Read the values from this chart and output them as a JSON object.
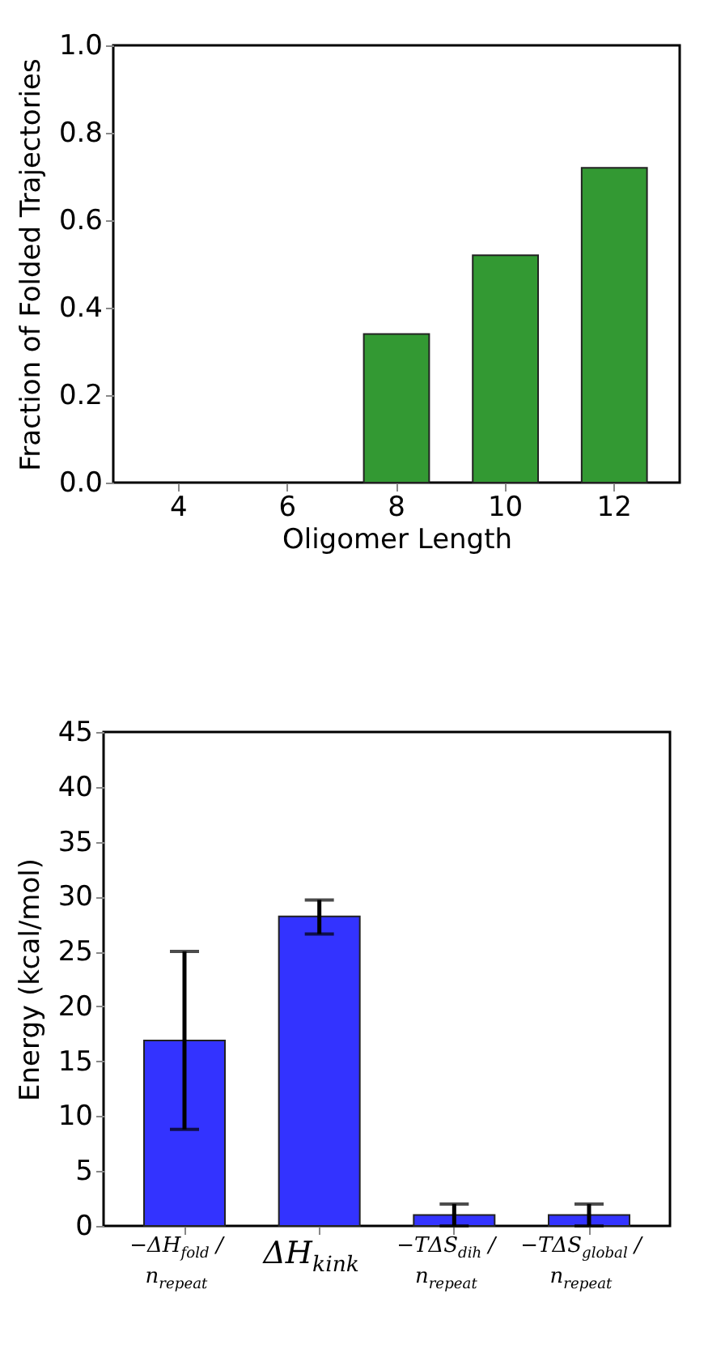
{
  "chart_data": [
    {
      "type": "bar",
      "xlabel": "Oligomer Length",
      "ylabel": "Fraction of Folded Trajectories",
      "categories": [
        "4",
        "6",
        "8",
        "10",
        "12"
      ],
      "values": [
        0,
        0,
        0.34,
        0.52,
        0.72
      ],
      "color": "#339933",
      "ylim": [
        0,
        1
      ],
      "yticks": [
        {
          "value": 0,
          "label": "0.0"
        },
        0.2,
        0.4,
        0.6,
        0.8,
        {
          "value": 1,
          "label": "1.0"
        }
      ],
      "grid": false
    },
    {
      "type": "bar",
      "ylabel": "Energy (kcal/mol)",
      "categories": [
        "−ΔH$_{fold}$ / n$_{repeat}$",
        "ΔH$_{kink}$",
        "−TΔS$_{dih}$ / n$_{repeat}$",
        "−TΔS$_{global}$ / n$_{repeat}$"
      ],
      "values": [
        16.9,
        28.2,
        1.0,
        1.0
      ],
      "errors": [
        [
          8.8,
          25
        ],
        [
          26.6,
          29.7
        ],
        [
          0,
          2
        ],
        [
          0,
          2
        ]
      ],
      "color": "#3333ff",
      "ylim": [
        0,
        45
      ],
      "yticks": [
        0,
        5,
        10,
        15,
        20,
        25,
        30,
        35,
        40,
        45
      ],
      "grid": false
    }
  ]
}
